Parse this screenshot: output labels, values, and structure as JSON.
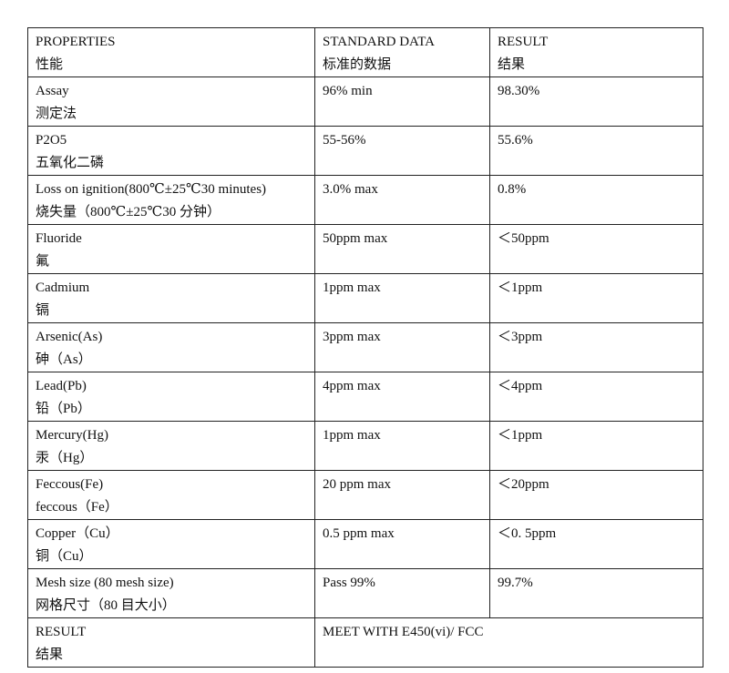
{
  "table": {
    "header": [
      [
        "PROPERTIES",
        "性能"
      ],
      [
        "STANDARD DATA",
        "标准的数据"
      ],
      [
        "RESULT",
        "结果"
      ]
    ],
    "rows": [
      [
        [
          "Assay",
          "测定法"
        ],
        "96% min",
        "98.30%"
      ],
      [
        [
          "P2O5",
          "五氧化二磷"
        ],
        "55-56%",
        "55.6%"
      ],
      [
        [
          "Loss on ignition(800℃±25℃30 minutes)",
          "烧失量（800℃±25℃30 分钟）"
        ],
        "3.0% max",
        "0.8%"
      ],
      [
        [
          "Fluoride",
          "氟"
        ],
        "50ppm max",
        "＜50ppm"
      ],
      [
        [
          "Cadmium",
          "镉"
        ],
        "1ppm max",
        "＜1ppm"
      ],
      [
        [
          "Arsenic(As)",
          "砷（As）"
        ],
        "3ppm max",
        "＜3ppm"
      ],
      [
        [
          "Lead(Pb)",
          "铅（Pb）"
        ],
        "4ppm max",
        "＜4ppm"
      ],
      [
        [
          "Mercury(Hg)",
          "汞（Hg）"
        ],
        "1ppm max",
        "＜1ppm"
      ],
      [
        [
          "Feccous(Fe)",
          "feccous（Fe）"
        ],
        "20 ppm max",
        "＜20ppm"
      ],
      [
        [
          "Copper（Cu）",
          "铜（Cu）"
        ],
        "0.5 ppm max",
        "＜0. 5ppm"
      ],
      [
        [
          "Mesh size (80 mesh size)",
          "网格尺寸（80 目大小）"
        ],
        "Pass 99%",
        "99.7%"
      ]
    ],
    "footer": {
      "label": [
        "RESULT",
        "结果"
      ],
      "value": "MEET WITH E450(vi)/ FCC"
    }
  }
}
